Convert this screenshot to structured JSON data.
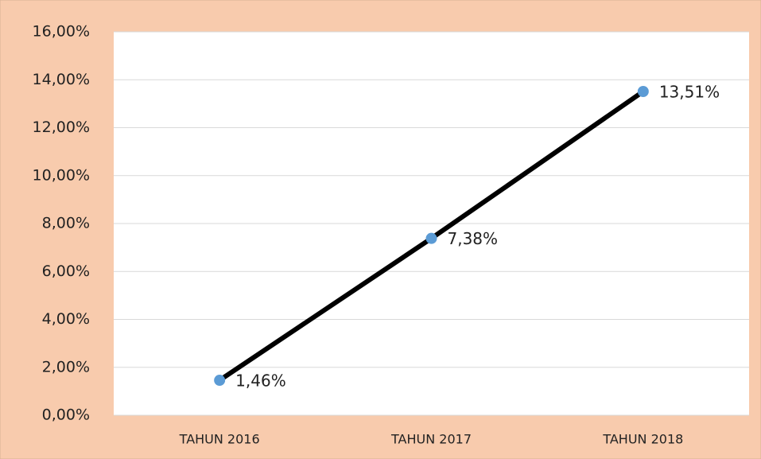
{
  "chart_data": {
    "type": "line",
    "categories": [
      "TAHUN 2016",
      "TAHUN 2017",
      "TAHUN 2018"
    ],
    "values": [
      1.46,
      7.38,
      13.51
    ],
    "value_labels": [
      "1,46%",
      "7,38%",
      "13,51%"
    ],
    "color": "#000000",
    "marker_color": "#5b9bd5",
    "ylim": [
      0,
      16
    ],
    "yticks": [
      {
        "value": 0,
        "label": "0,00%"
      },
      {
        "value": 2,
        "label": "2,00%"
      },
      {
        "value": 4,
        "label": "4,00%"
      },
      {
        "value": 6,
        "label": "6,00%"
      },
      {
        "value": 8,
        "label": "8,00%"
      },
      {
        "value": 10,
        "label": "10,00%"
      },
      {
        "value": 12,
        "label": "12,00%"
      },
      {
        "value": 14,
        "label": "14,00%"
      },
      {
        "value": 16,
        "label": "16,00%"
      }
    ],
    "grid": true
  }
}
